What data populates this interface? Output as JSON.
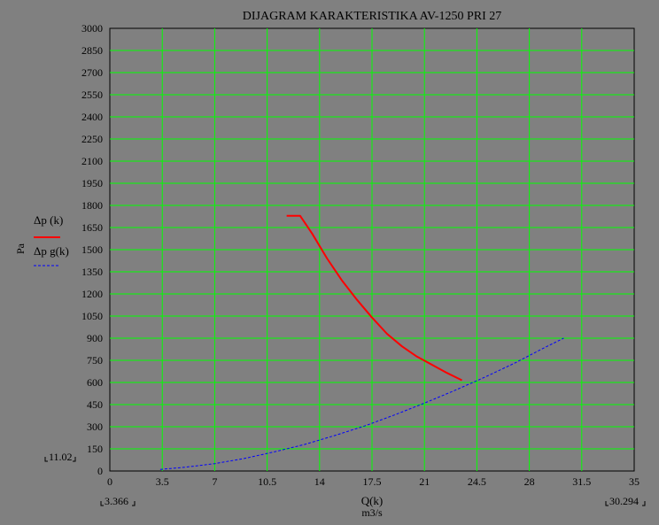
{
  "chart_data": {
    "type": "line",
    "title": "DIJAGRAM KARAKTERISTIKA AV-1250 PRI  27",
    "xlabel": "Q(k)",
    "xunit": "m3/s",
    "ylabel": "Pa",
    "xlim": [
      0,
      35
    ],
    "ylim": [
      0,
      3000
    ],
    "x_ticks": [
      0,
      3.5,
      7,
      10.5,
      14,
      17.5,
      21,
      24.5,
      28,
      31.5,
      35
    ],
    "y_ticks": [
      0,
      150,
      300,
      450,
      600,
      750,
      900,
      1050,
      1200,
      1350,
      1500,
      1650,
      1800,
      1950,
      2100,
      2250,
      2400,
      2550,
      2700,
      2850,
      3000
    ],
    "grid": true,
    "grid_color": "#00ff00",
    "range_labels": {
      "y_min": "11.02",
      "x_min": "3.366",
      "x_max": "30.294"
    },
    "series": [
      {
        "name": "Δp  (k)",
        "color": "#ff0000",
        "style": "solid",
        "points": [
          [
            11.8,
            1730
          ],
          [
            12.7,
            1730
          ],
          [
            13.5,
            1610
          ],
          [
            14.5,
            1440
          ],
          [
            15.5,
            1290
          ],
          [
            16.5,
            1160
          ],
          [
            17.5,
            1040
          ],
          [
            18.5,
            930
          ],
          [
            19.5,
            845
          ],
          [
            20.5,
            775
          ],
          [
            21.5,
            720
          ],
          [
            22.5,
            665
          ],
          [
            23.5,
            615
          ]
        ]
      },
      {
        "name": "Δp g(k)",
        "color": "#0000ff",
        "style": "dashed",
        "points": [
          [
            3.366,
            11
          ],
          [
            5,
            25
          ],
          [
            7,
            50
          ],
          [
            9,
            85
          ],
          [
            11,
            130
          ],
          [
            13,
            180
          ],
          [
            15,
            240
          ],
          [
            17,
            305
          ],
          [
            19,
            380
          ],
          [
            21,
            460
          ],
          [
            23,
            545
          ],
          [
            25,
            635
          ],
          [
            27,
            730
          ],
          [
            29,
            835
          ],
          [
            30.294,
            900
          ]
        ]
      }
    ]
  }
}
